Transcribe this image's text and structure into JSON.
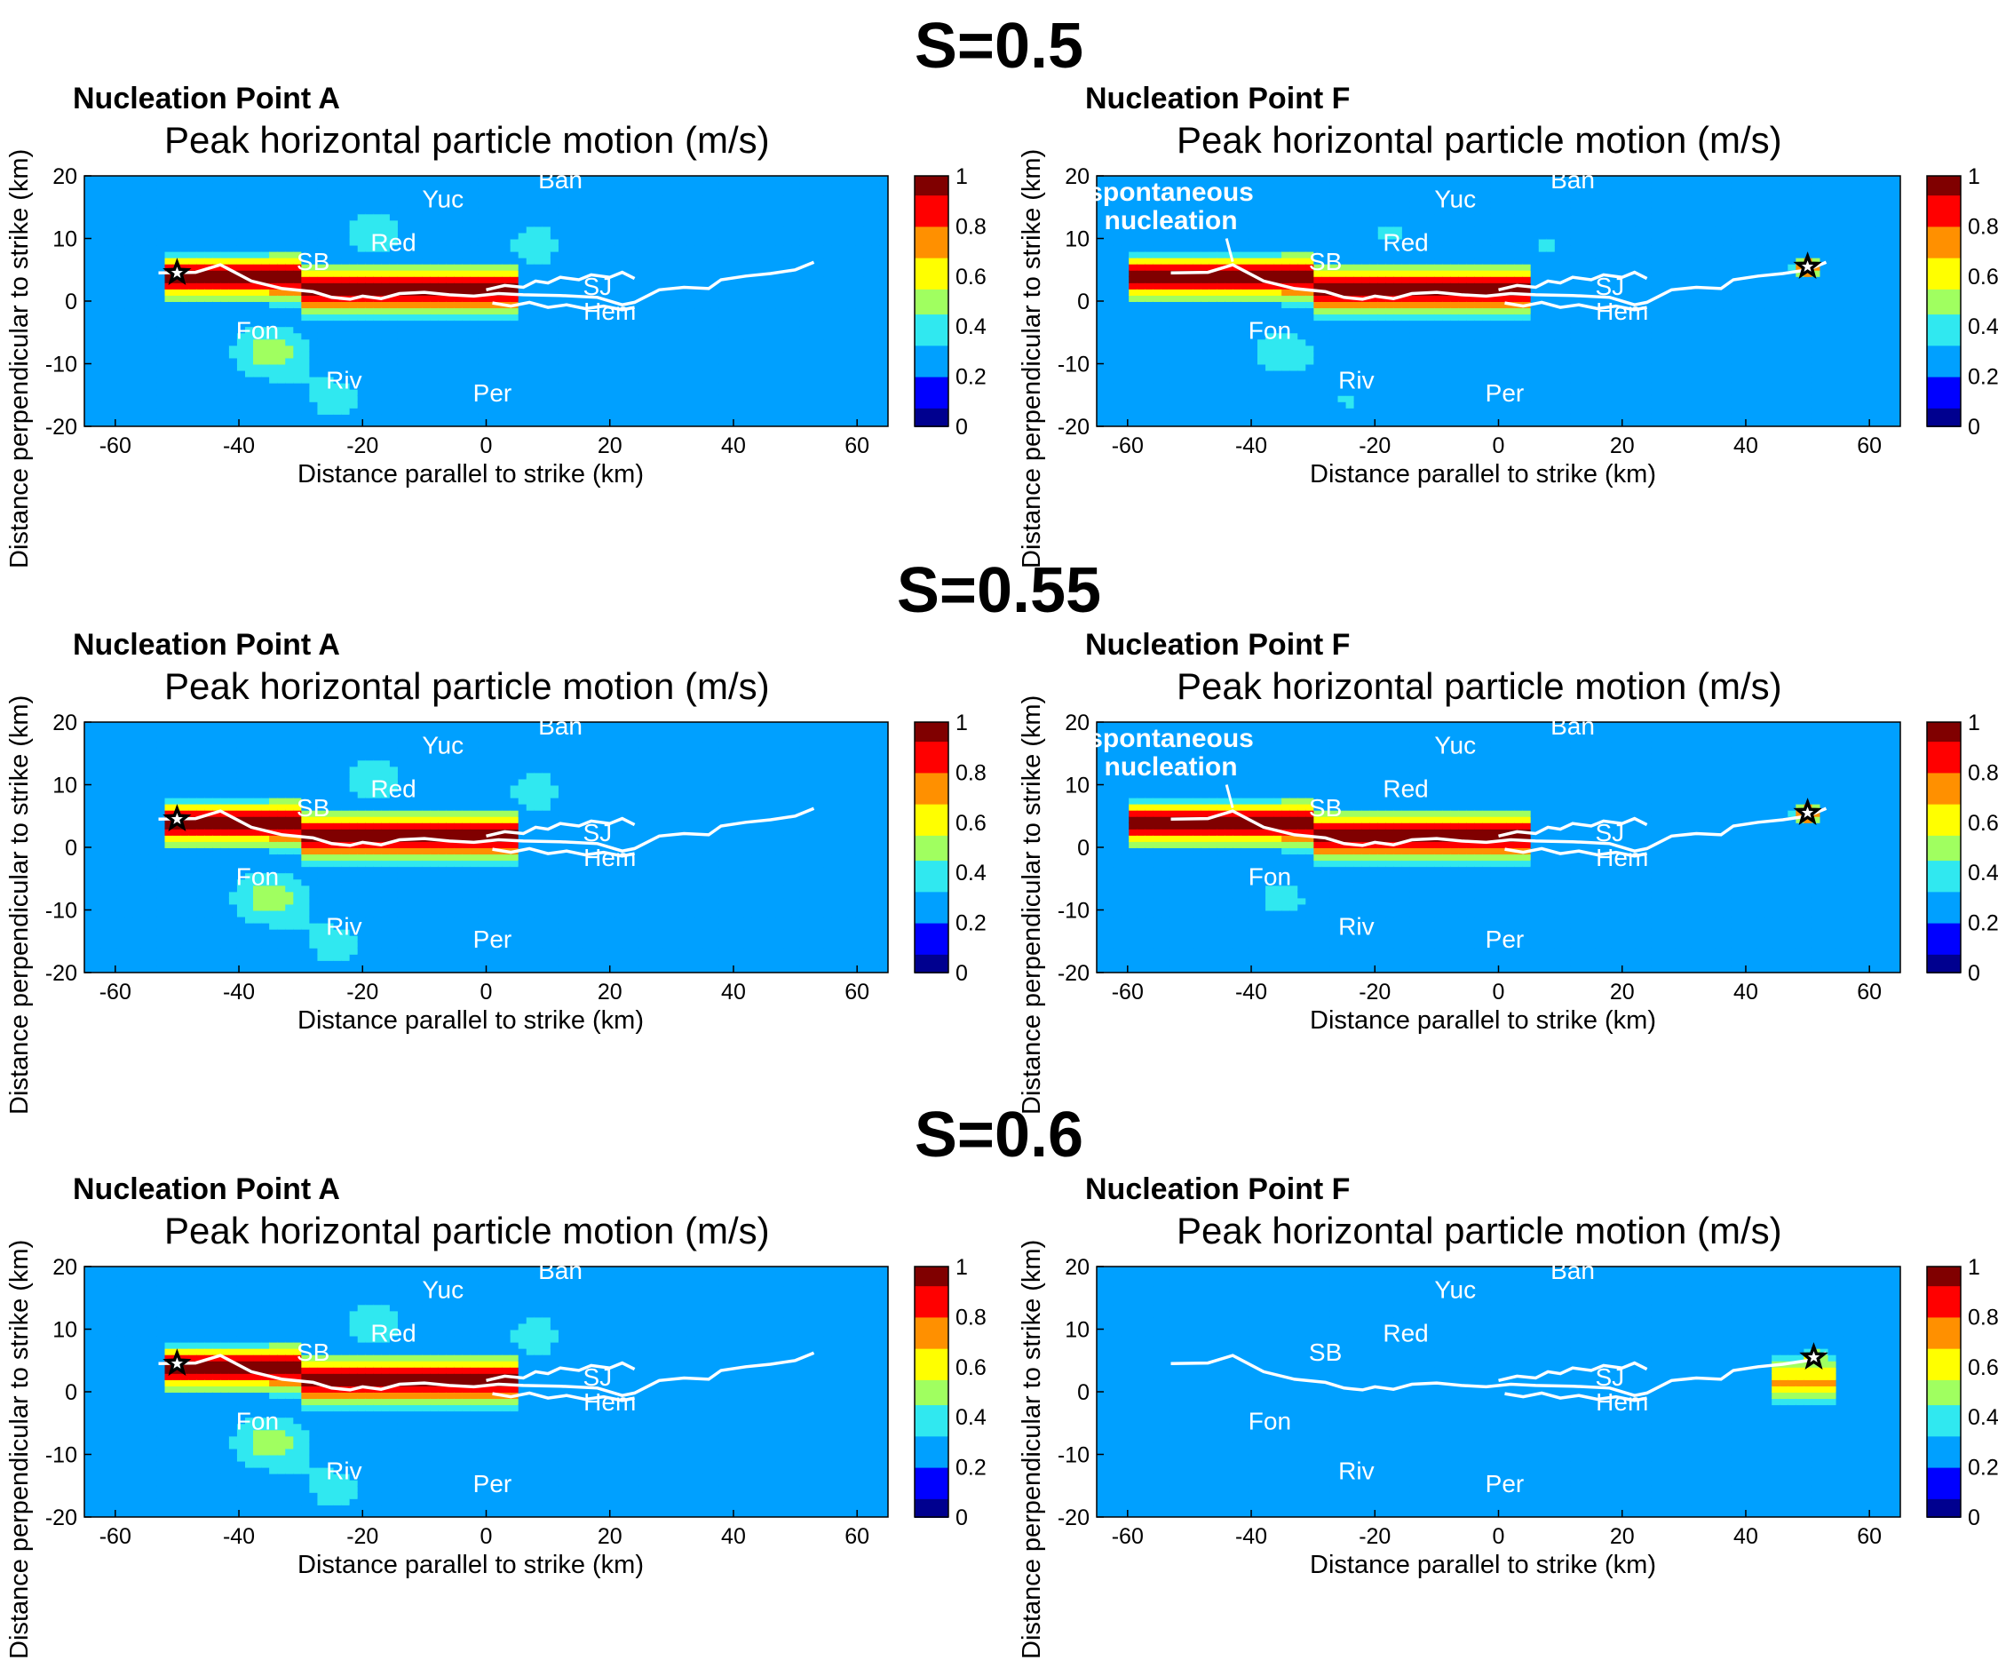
{
  "figure": {
    "rows": [
      {
        "title": "S=0.5"
      },
      {
        "title": "S=0.55"
      },
      {
        "title": "S=0.6"
      }
    ]
  },
  "colors": {
    "colormap": [
      "#00008f",
      "#0000ff",
      "#00a0ff",
      "#30e8f0",
      "#a0ff60",
      "#ffff00",
      "#ff9000",
      "#ff0000",
      "#800000"
    ],
    "background_field": "#2b50c8",
    "fault_trace": "#ffffff",
    "site_label": "#ffffff"
  },
  "chart_data": [
    {
      "type": "heatmap",
      "row": "S=0.5",
      "nucleation": "Nucleation Point A",
      "title": "Peak horizontal particle motion (m/s)",
      "xlabel": "Distance parallel to strike (km)",
      "ylabel": "Distance perpendicular to strike (km)",
      "xlim": [
        -65,
        65
      ],
      "ylim": [
        -20,
        20
      ],
      "xticks": [
        -60,
        -40,
        -20,
        0,
        20,
        40,
        60
      ],
      "yticks": [
        -20,
        -10,
        0,
        10,
        20
      ],
      "colorbar": {
        "range": [
          0,
          1
        ],
        "ticks": [
          0,
          0.2,
          0.4,
          0.6,
          0.8,
          1
        ]
      },
      "hypocenter": [
        -50,
        4.5
      ],
      "intensity": {
        "peak": 1.0,
        "extent": [
          -52,
          5
        ],
        "lobes": 1.0
      },
      "sites": [
        {
          "name": "Yuc",
          "x": -7,
          "y": 15
        },
        {
          "name": "Ban",
          "x": 12,
          "y": 18
        },
        {
          "name": "SB",
          "x": -28,
          "y": 5
        },
        {
          "name": "Red",
          "x": -15,
          "y": 8
        },
        {
          "name": "SJ",
          "x": 18,
          "y": 1
        },
        {
          "name": "Hem",
          "x": 20,
          "y": -3
        },
        {
          "name": "Fon",
          "x": -37,
          "y": -6
        },
        {
          "name": "Riv",
          "x": -23,
          "y": -14
        },
        {
          "name": "Per",
          "x": 1,
          "y": -16
        }
      ],
      "annotation": ""
    },
    {
      "type": "heatmap",
      "row": "S=0.5",
      "nucleation": "Nucleation Point F",
      "title": "Peak horizontal particle motion (m/s)",
      "xlabel": "Distance parallel to strike (km)",
      "ylabel": "Distance perpendicular to strike (km)",
      "xlim": [
        -65,
        65
      ],
      "ylim": [
        -20,
        20
      ],
      "xticks": [
        -60,
        -40,
        -20,
        0,
        20,
        40,
        60
      ],
      "yticks": [
        -20,
        -10,
        0,
        10,
        20
      ],
      "colorbar": {
        "range": [
          0,
          1
        ],
        "ticks": [
          0,
          0.2,
          0.4,
          0.6,
          0.8,
          1
        ]
      },
      "hypocenter": [
        50,
        5.5
      ],
      "intensity": {
        "peak": 1.0,
        "extent": [
          -60,
          5
        ],
        "lobes": 0.8
      },
      "sites": [
        {
          "name": "Yuc",
          "x": -7,
          "y": 15
        },
        {
          "name": "Ban",
          "x": 12,
          "y": 18
        },
        {
          "name": "SB",
          "x": -28,
          "y": 5
        },
        {
          "name": "Red",
          "x": -15,
          "y": 8
        },
        {
          "name": "SJ",
          "x": 18,
          "y": 1
        },
        {
          "name": "Hem",
          "x": 20,
          "y": -3
        },
        {
          "name": "Fon",
          "x": -37,
          "y": -6
        },
        {
          "name": "Riv",
          "x": -23,
          "y": -14
        },
        {
          "name": "Per",
          "x": 1,
          "y": -16
        }
      ],
      "annotation": "spontaneous nucleation"
    },
    {
      "type": "heatmap",
      "row": "S=0.55",
      "nucleation": "Nucleation Point A",
      "title": "Peak horizontal particle motion (m/s)",
      "xlabel": "Distance parallel to strike (km)",
      "ylabel": "Distance perpendicular to strike (km)",
      "xlim": [
        -65,
        65
      ],
      "ylim": [
        -20,
        20
      ],
      "xticks": [
        -60,
        -40,
        -20,
        0,
        20,
        40,
        60
      ],
      "yticks": [
        -20,
        -10,
        0,
        10,
        20
      ],
      "colorbar": {
        "range": [
          0,
          1
        ],
        "ticks": [
          0,
          0.2,
          0.4,
          0.6,
          0.8,
          1
        ]
      },
      "hypocenter": [
        -50,
        4.5
      ],
      "intensity": {
        "peak": 1.0,
        "extent": [
          -52,
          5
        ],
        "lobes": 1.0
      },
      "sites": [
        {
          "name": "Yuc",
          "x": -7,
          "y": 15
        },
        {
          "name": "Ban",
          "x": 12,
          "y": 18
        },
        {
          "name": "SB",
          "x": -28,
          "y": 5
        },
        {
          "name": "Red",
          "x": -15,
          "y": 8
        },
        {
          "name": "SJ",
          "x": 18,
          "y": 1
        },
        {
          "name": "Hem",
          "x": 20,
          "y": -3
        },
        {
          "name": "Fon",
          "x": -37,
          "y": -6
        },
        {
          "name": "Riv",
          "x": -23,
          "y": -14
        },
        {
          "name": "Per",
          "x": 1,
          "y": -16
        }
      ],
      "annotation": ""
    },
    {
      "type": "heatmap",
      "row": "S=0.55",
      "nucleation": "Nucleation Point F",
      "title": "Peak horizontal particle motion (m/s)",
      "xlabel": "Distance parallel to strike (km)",
      "ylabel": "Distance perpendicular to strike (km)",
      "xlim": [
        -65,
        65
      ],
      "ylim": [
        -20,
        20
      ],
      "xticks": [
        -60,
        -40,
        -20,
        0,
        20,
        40,
        60
      ],
      "yticks": [
        -20,
        -10,
        0,
        10,
        20
      ],
      "colorbar": {
        "range": [
          0,
          1
        ],
        "ticks": [
          0,
          0.2,
          0.4,
          0.6,
          0.8,
          1
        ]
      },
      "hypocenter": [
        50,
        5.5
      ],
      "intensity": {
        "peak": 1.0,
        "extent": [
          -60,
          5
        ],
        "lobes": 0.7
      },
      "sites": [
        {
          "name": "Yuc",
          "x": -7,
          "y": 15
        },
        {
          "name": "Ban",
          "x": 12,
          "y": 18
        },
        {
          "name": "SB",
          "x": -28,
          "y": 5
        },
        {
          "name": "Red",
          "x": -15,
          "y": 8
        },
        {
          "name": "SJ",
          "x": 18,
          "y": 1
        },
        {
          "name": "Hem",
          "x": 20,
          "y": -3
        },
        {
          "name": "Fon",
          "x": -37,
          "y": -6
        },
        {
          "name": "Riv",
          "x": -23,
          "y": -14
        },
        {
          "name": "Per",
          "x": 1,
          "y": -16
        }
      ],
      "annotation": "spontaneous nucleation"
    },
    {
      "type": "heatmap",
      "row": "S=0.6",
      "nucleation": "Nucleation Point A",
      "title": "Peak horizontal particle motion (m/s)",
      "xlabel": "Distance parallel to strike (km)",
      "ylabel": "Distance perpendicular to strike (km)",
      "xlim": [
        -65,
        65
      ],
      "ylim": [
        -20,
        20
      ],
      "xticks": [
        -60,
        -40,
        -20,
        0,
        20,
        40,
        60
      ],
      "yticks": [
        -20,
        -10,
        0,
        10,
        20
      ],
      "colorbar": {
        "range": [
          0,
          1
        ],
        "ticks": [
          0,
          0.2,
          0.4,
          0.6,
          0.8,
          1
        ]
      },
      "hypocenter": [
        -50,
        4.5
      ],
      "intensity": {
        "peak": 1.0,
        "extent": [
          -52,
          5
        ],
        "lobes": 1.0
      },
      "sites": [
        {
          "name": "Yuc",
          "x": -7,
          "y": 15
        },
        {
          "name": "Ban",
          "x": 12,
          "y": 18
        },
        {
          "name": "SB",
          "x": -28,
          "y": 5
        },
        {
          "name": "Red",
          "x": -15,
          "y": 8
        },
        {
          "name": "SJ",
          "x": 18,
          "y": 1
        },
        {
          "name": "Hem",
          "x": 20,
          "y": -3
        },
        {
          "name": "Fon",
          "x": -37,
          "y": -6
        },
        {
          "name": "Riv",
          "x": -23,
          "y": -14
        },
        {
          "name": "Per",
          "x": 1,
          "y": -16
        }
      ],
      "annotation": ""
    },
    {
      "type": "heatmap",
      "row": "S=0.6",
      "nucleation": "Nucleation Point F",
      "title": "Peak horizontal particle motion (m/s)",
      "xlabel": "Distance parallel to strike (km)",
      "ylabel": "Distance perpendicular to strike (km)",
      "xlim": [
        -65,
        65
      ],
      "ylim": [
        -20,
        20
      ],
      "xticks": [
        -60,
        -40,
        -20,
        0,
        20,
        40,
        60
      ],
      "yticks": [
        -20,
        -10,
        0,
        10,
        20
      ],
      "colorbar": {
        "range": [
          0,
          1
        ],
        "ticks": [
          0,
          0.2,
          0.4,
          0.6,
          0.8,
          1
        ]
      },
      "hypocenter": [
        51,
        5.5
      ],
      "intensity": {
        "peak": 0.7,
        "extent": [
          44,
          55
        ],
        "lobes": 0.0
      },
      "sites": [
        {
          "name": "Yuc",
          "x": -7,
          "y": 15
        },
        {
          "name": "Ban",
          "x": 12,
          "y": 18
        },
        {
          "name": "SB",
          "x": -28,
          "y": 5
        },
        {
          "name": "Red",
          "x": -15,
          "y": 8
        },
        {
          "name": "SJ",
          "x": 18,
          "y": 1
        },
        {
          "name": "Hem",
          "x": 20,
          "y": -3
        },
        {
          "name": "Fon",
          "x": -37,
          "y": -6
        },
        {
          "name": "Riv",
          "x": -23,
          "y": -14
        },
        {
          "name": "Per",
          "x": 1,
          "y": -16
        }
      ],
      "annotation": ""
    }
  ]
}
